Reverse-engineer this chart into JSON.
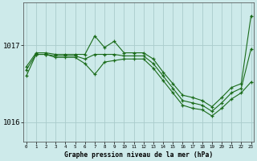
{
  "title": "Graphe pression niveau de la mer (hPa)",
  "background_color": "#cdeaea",
  "grid_color": "#aacccc",
  "line_color": "#1a6b1a",
  "x_ticks": [
    0,
    1,
    2,
    3,
    4,
    5,
    6,
    7,
    8,
    9,
    10,
    11,
    12,
    13,
    14,
    15,
    16,
    17,
    18,
    19,
    20,
    21,
    22,
    23
  ],
  "ylim": [
    1015.75,
    1017.55
  ],
  "yticks": [
    1016,
    1017
  ],
  "series": {
    "high": [
      1016.72,
      1016.9,
      1016.9,
      1016.88,
      1016.88,
      1016.88,
      1016.88,
      1017.12,
      1016.97,
      1017.05,
      1016.9,
      1016.9,
      1016.9,
      1016.82,
      1016.65,
      1016.5,
      1016.35,
      1016.32,
      1016.28,
      1016.2,
      1016.32,
      1016.45,
      1016.5,
      1017.38
    ],
    "mid": [
      1016.68,
      1016.88,
      1016.88,
      1016.86,
      1016.86,
      1016.86,
      1016.82,
      1016.88,
      1016.88,
      1016.88,
      1016.86,
      1016.86,
      1016.86,
      1016.76,
      1016.6,
      1016.44,
      1016.28,
      1016.25,
      1016.22,
      1016.14,
      1016.25,
      1016.38,
      1016.44,
      1016.95
    ],
    "low": [
      1016.6,
      1016.88,
      1016.88,
      1016.84,
      1016.84,
      1016.84,
      1016.76,
      1016.62,
      1016.78,
      1016.8,
      1016.82,
      1016.82,
      1016.82,
      1016.7,
      1016.54,
      1016.38,
      1016.22,
      1016.18,
      1016.16,
      1016.08,
      1016.18,
      1016.3,
      1016.38,
      1016.52
    ]
  }
}
